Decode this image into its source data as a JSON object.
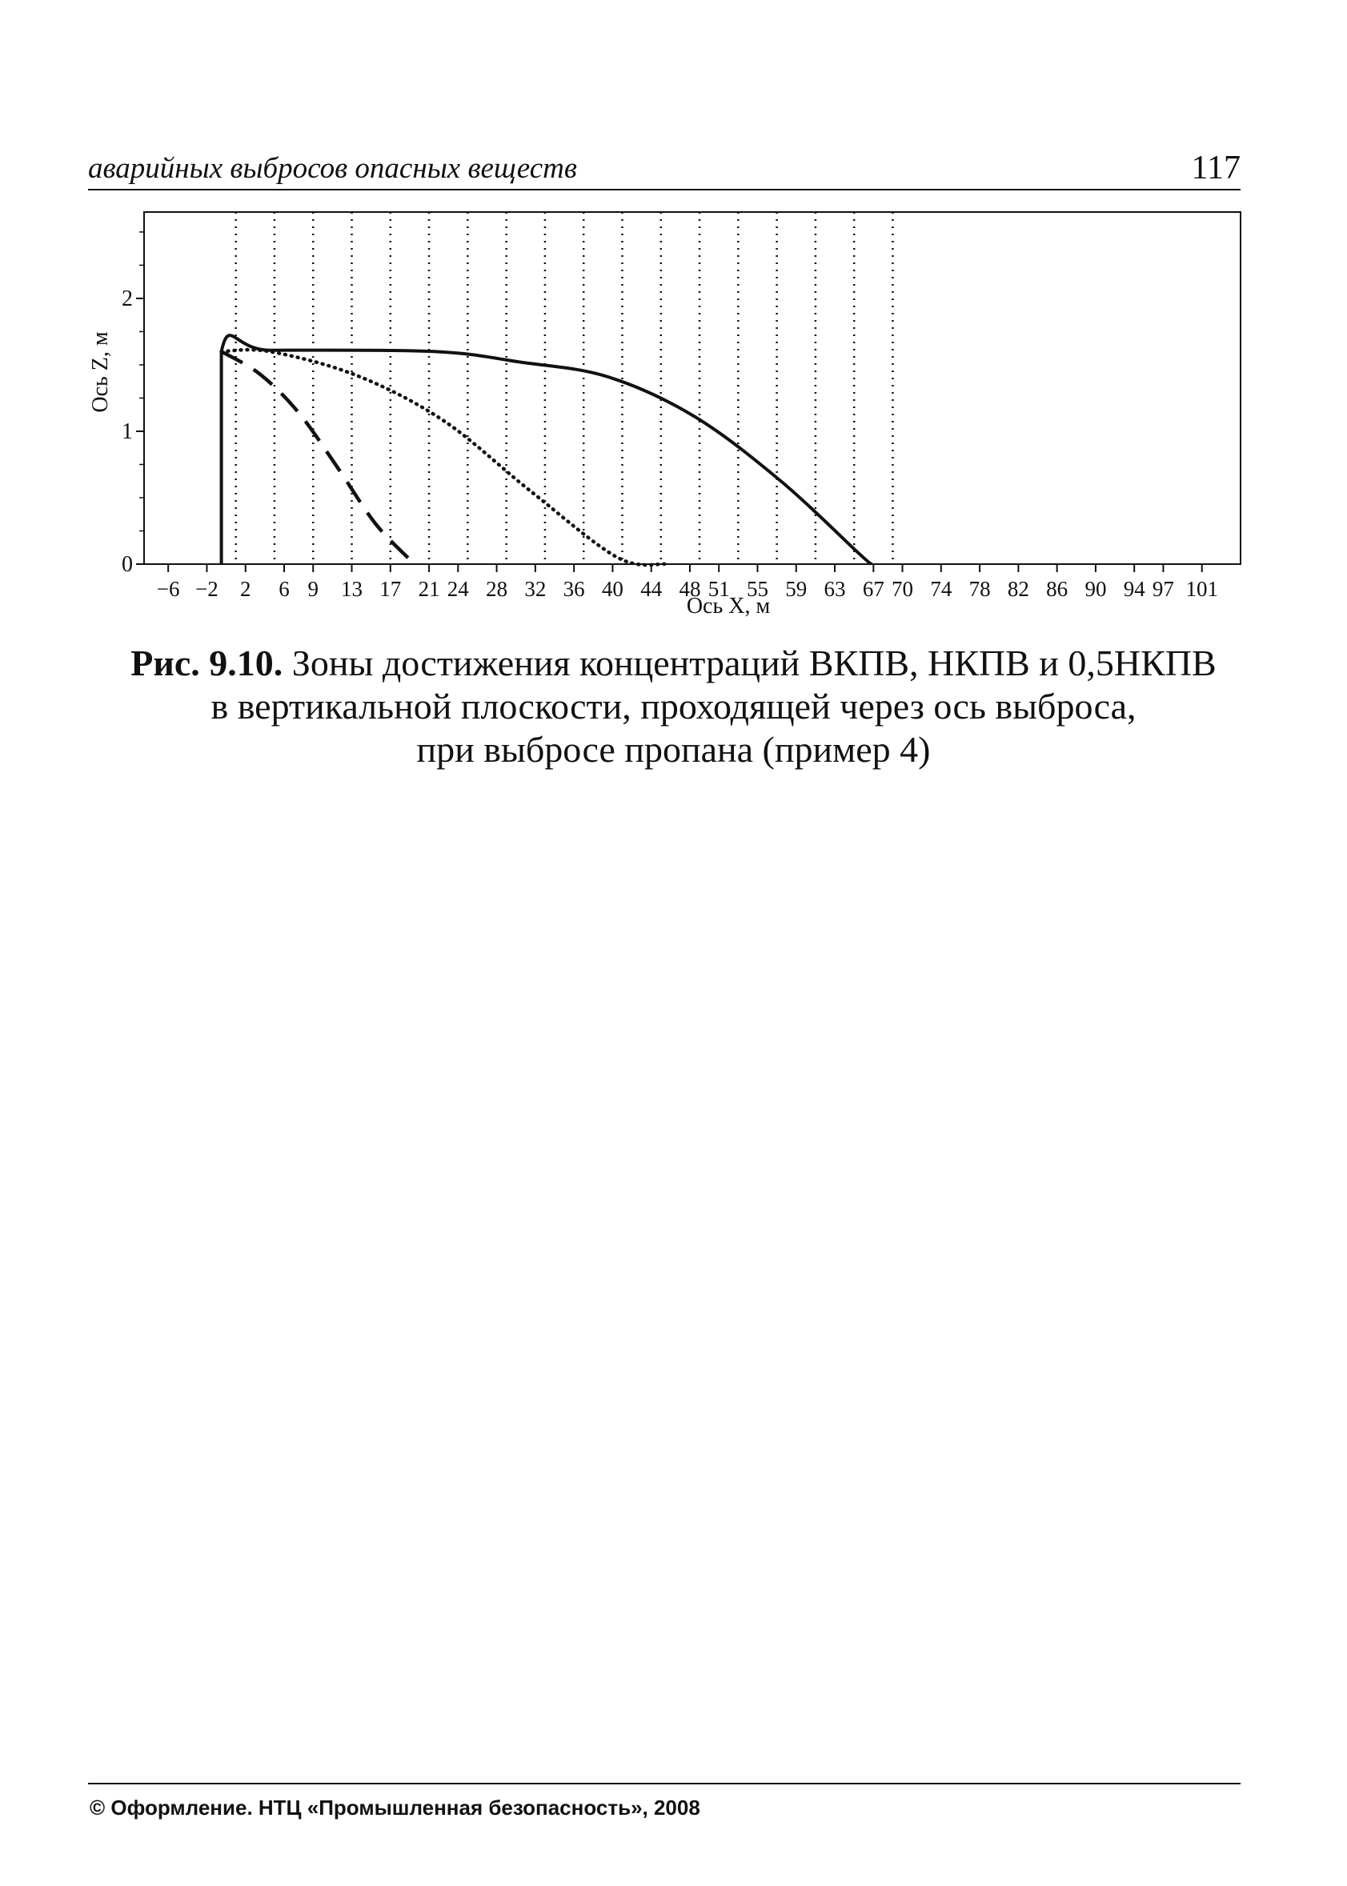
{
  "header": {
    "running_title": "аварийных выбросов опасных веществ",
    "page_number": "117"
  },
  "chart_data": {
    "type": "line",
    "xlabel": "Ось X, м",
    "ylabel": "Ось Z, м",
    "xlim": [
      -8.5,
      105
    ],
    "ylim": [
      0,
      2.65
    ],
    "x_ticks": [
      "-6",
      "-2",
      "2",
      "6",
      "9",
      "13",
      "17",
      "21",
      "24",
      "28",
      "32",
      "36",
      "40",
      "44",
      "48",
      "51",
      "55",
      "59",
      "63",
      "67",
      "70",
      "74",
      "78",
      "82",
      "86",
      "90",
      "94",
      "97",
      "101"
    ],
    "x_tick_values": [
      -6,
      -2,
      2,
      6,
      9,
      13,
      17,
      21,
      24,
      28,
      32,
      36,
      40,
      44,
      48,
      51,
      55,
      59,
      63,
      67,
      70,
      74,
      78,
      82,
      86,
      90,
      94,
      97,
      101
    ],
    "y_ticks": [
      "0",
      "1",
      "2"
    ],
    "y_tick_values": [
      0,
      1,
      2
    ],
    "vertical_dotted_gridlines_x": [
      1,
      5,
      9,
      13,
      17,
      21,
      25,
      29,
      33,
      37,
      41,
      45,
      49,
      53,
      57,
      61,
      65,
      69
    ],
    "grid": "vertical dotted lines",
    "legend": "none",
    "series": [
      {
        "style": "dashed",
        "x": [
          -0.5,
          3.5,
          7.5,
          11.5,
          15.5,
          19.5
        ],
        "y": [
          1.6,
          1.43,
          1.14,
          0.73,
          0.3,
          0
        ]
      },
      {
        "style": "dotted",
        "x": [
          -0.5,
          4.5,
          13.5,
          22.5,
          31.5,
          40.5,
          45.5
        ],
        "y": [
          1.6,
          1.6,
          1.42,
          1.08,
          0.55,
          0.05,
          0
        ]
      },
      {
        "style": "solid",
        "x": [
          -0.5,
          -0.5,
          4.5,
          21.5,
          30.5,
          39.5,
          48.5,
          57.5,
          65.5,
          66.8
        ],
        "y": [
          0,
          1.6,
          1.61,
          1.6,
          1.52,
          1.41,
          1.11,
          0.62,
          0.08,
          0
        ]
      }
    ]
  },
  "caption": {
    "figure_number": "Рис. 9.10.",
    "line1": " Зоны достижения концентраций ВКПВ, НКПВ и 0,5НКПВ",
    "line2": "в вертикальной плоскости, проходящей через ось выброса,",
    "line3": "при выбросе пропана (пример 4)"
  },
  "footer": {
    "text": "© Оформление. НТЦ «Промышленная безопасность», 2008"
  }
}
